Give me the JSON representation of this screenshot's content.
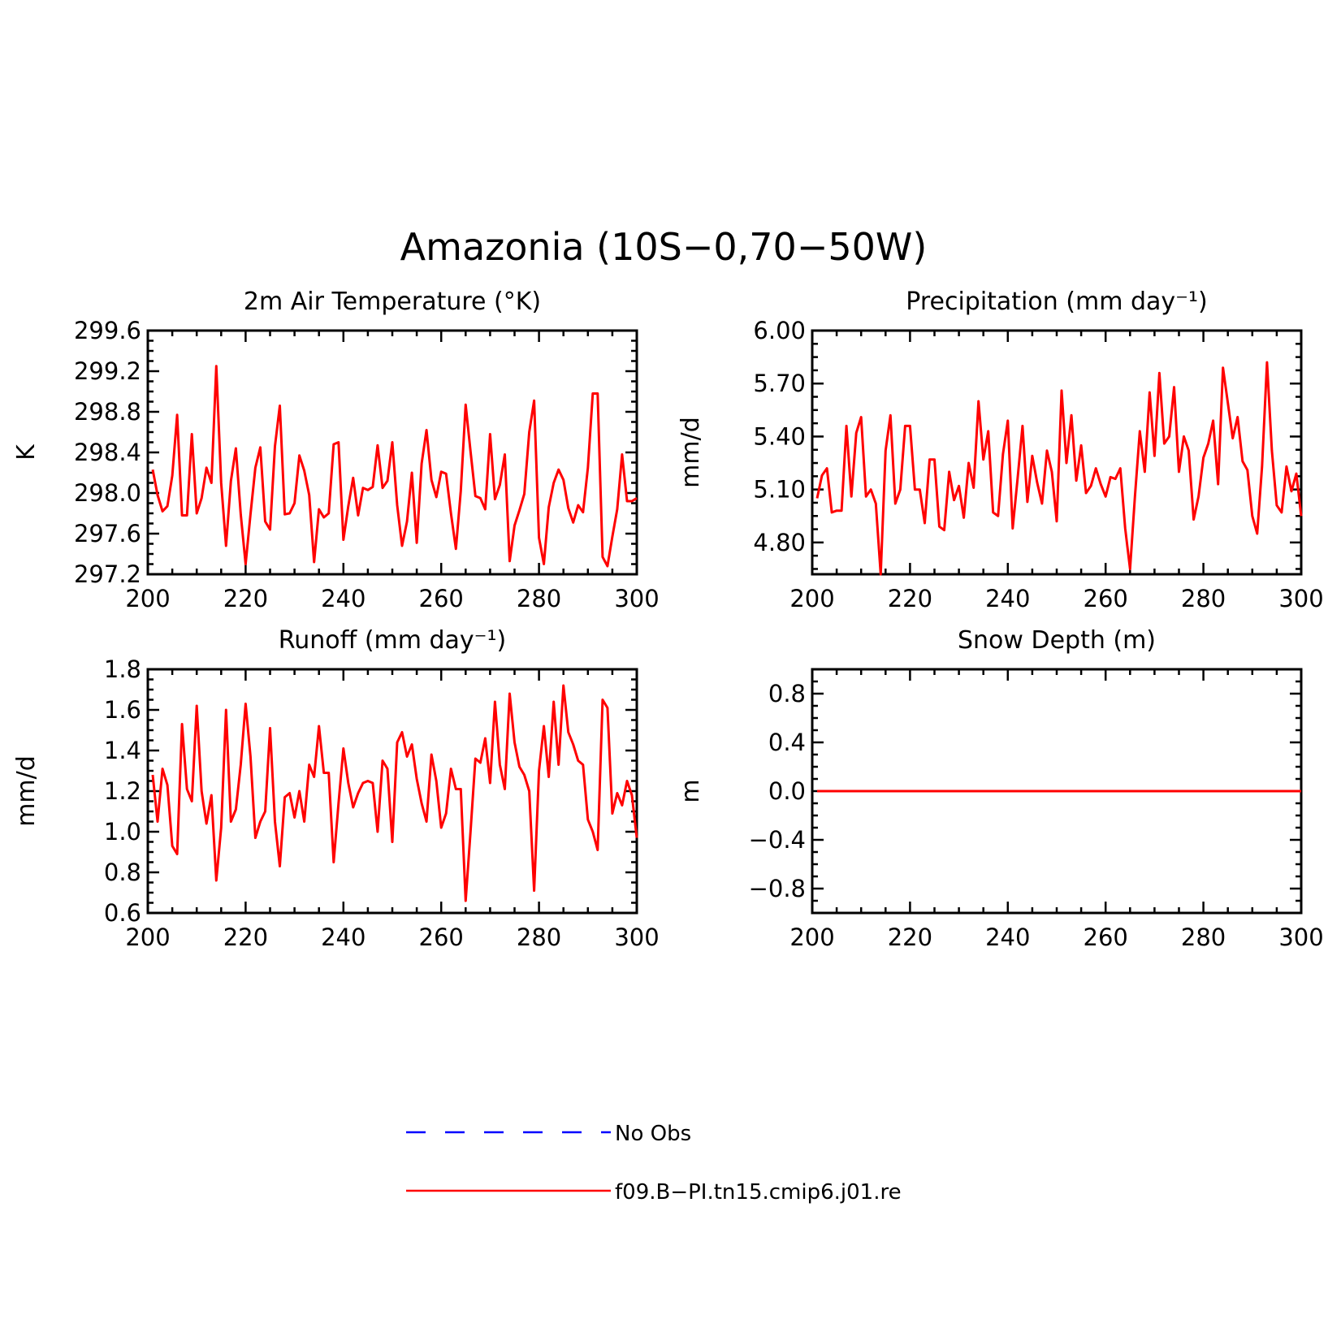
{
  "title": "Amazonia (10S−0,70−50W)",
  "legend": [
    {
      "label": "No Obs",
      "color": "#0000ff",
      "style": "dashed"
    },
    {
      "label": "f09.B−PI.tn15.cmip6.j01.re",
      "color": "#ff0000",
      "style": "solid"
    }
  ],
  "chart_data": [
    {
      "type": "line",
      "title": "2m Air Temperature (°K)",
      "ylabel": "K",
      "xlabel": "",
      "xlim": [
        200,
        300
      ],
      "ylim": [
        297.2,
        299.6
      ],
      "xticks": [
        "200",
        "220",
        "240",
        "260",
        "280",
        "300"
      ],
      "yticks": [
        "297.2",
        "297.6",
        "298.0",
        "298.4",
        "298.8",
        "299.2",
        "299.6"
      ],
      "series": [
        {
          "name": "f09.B−PI.tn15.cmip6.j01.re",
          "color": "#ff0000",
          "x_start": 201,
          "values": [
            298.23,
            297.98,
            297.82,
            297.87,
            298.17,
            298.77,
            297.78,
            297.78,
            298.58,
            297.8,
            297.95,
            298.25,
            298.1,
            299.25,
            298.1,
            297.48,
            298.12,
            298.44,
            297.79,
            297.3,
            297.79,
            298.25,
            298.45,
            297.72,
            297.64,
            298.46,
            298.86,
            297.79,
            297.8,
            297.9,
            298.37,
            298.22,
            297.98,
            297.32,
            297.84,
            297.76,
            297.8,
            298.48,
            298.5,
            297.54,
            297.87,
            298.15,
            297.78,
            298.05,
            298.03,
            298.06,
            298.47,
            298.05,
            298.12,
            298.5,
            297.88,
            297.48,
            297.72,
            298.2,
            297.51,
            298.29,
            298.62,
            298.13,
            297.96,
            298.21,
            298.19,
            297.8,
            297.45,
            298.02,
            298.87,
            298.41,
            297.97,
            297.95,
            297.84,
            298.58,
            297.94,
            298.08,
            298.38,
            297.33,
            297.68,
            297.83,
            297.99,
            298.6,
            298.91,
            297.56,
            297.3,
            297.86,
            298.1,
            298.23,
            298.13,
            297.85,
            297.71,
            297.88,
            297.81,
            298.25,
            298.98,
            298.98,
            297.37,
            297.28,
            297.57,
            297.84,
            298.38,
            297.92,
            297.92,
            297.95
          ]
        }
      ]
    },
    {
      "type": "line",
      "title": "Precipitation (mm day⁻¹)",
      "ylabel": "mm/d",
      "xlabel": "",
      "xlim": [
        200,
        300
      ],
      "ylim": [
        4.62,
        6.0
      ],
      "xticks": [
        "200",
        "220",
        "240",
        "260",
        "280",
        "300"
      ],
      "yticks": [
        "4.80",
        "5.10",
        "5.40",
        "5.70",
        "6.00"
      ],
      "series": [
        {
          "name": "f09.B−PI.tn15.cmip6.j01.re",
          "color": "#ff0000",
          "x_start": 201,
          "values": [
            5.05,
            5.18,
            5.22,
            4.97,
            4.98,
            4.98,
            5.46,
            5.06,
            5.42,
            5.51,
            5.06,
            5.1,
            5.02,
            4.62,
            5.32,
            5.52,
            5.02,
            5.1,
            5.46,
            5.46,
            5.1,
            5.1,
            4.91,
            5.27,
            5.27,
            4.89,
            4.87,
            5.2,
            5.04,
            5.12,
            4.94,
            5.25,
            5.11,
            5.6,
            5.27,
            5.43,
            4.97,
            4.95,
            5.3,
            5.49,
            4.88,
            5.16,
            5.46,
            5.03,
            5.29,
            5.14,
            5.02,
            5.32,
            5.2,
            4.92,
            5.66,
            5.25,
            5.52,
            5.15,
            5.35,
            5.08,
            5.12,
            5.22,
            5.13,
            5.06,
            5.17,
            5.16,
            5.22,
            4.88,
            4.65,
            5.06,
            5.43,
            5.2,
            5.65,
            5.29,
            5.76,
            5.36,
            5.4,
            5.68,
            5.2,
            5.4,
            5.32,
            4.93,
            5.06,
            5.28,
            5.36,
            5.49,
            5.13,
            5.79,
            5.59,
            5.39,
            5.51,
            5.26,
            5.21,
            4.95,
            4.85,
            5.23,
            5.82,
            5.32,
            5.01,
            4.97,
            5.23,
            5.09,
            5.19,
            4.95
          ]
        }
      ]
    },
    {
      "type": "line",
      "title": "Runoff (mm day⁻¹)",
      "ylabel": "mm/d",
      "xlabel": "",
      "xlim": [
        200,
        300
      ],
      "ylim": [
        0.6,
        1.8
      ],
      "xticks": [
        "200",
        "220",
        "240",
        "260",
        "280",
        "300"
      ],
      "yticks": [
        "0.6",
        "0.8",
        "1.0",
        "1.2",
        "1.4",
        "1.6",
        "1.8"
      ],
      "series": [
        {
          "name": "f09.B−PI.tn15.cmip6.j01.re",
          "color": "#ff0000",
          "x_start": 201,
          "values": [
            1.28,
            1.05,
            1.31,
            1.23,
            0.93,
            0.89,
            1.53,
            1.21,
            1.15,
            1.62,
            1.2,
            1.04,
            1.18,
            0.76,
            1.02,
            1.6,
            1.05,
            1.11,
            1.33,
            1.63,
            1.37,
            0.97,
            1.05,
            1.1,
            1.51,
            1.05,
            0.83,
            1.17,
            1.19,
            1.07,
            1.2,
            1.05,
            1.33,
            1.27,
            1.52,
            1.29,
            1.29,
            0.85,
            1.14,
            1.41,
            1.24,
            1.12,
            1.19,
            1.24,
            1.25,
            1.24,
            1.0,
            1.35,
            1.31,
            0.95,
            1.44,
            1.49,
            1.37,
            1.43,
            1.26,
            1.14,
            1.05,
            1.38,
            1.25,
            1.02,
            1.09,
            1.31,
            1.21,
            1.21,
            0.66,
            1.0,
            1.36,
            1.34,
            1.46,
            1.24,
            1.64,
            1.33,
            1.21,
            1.68,
            1.44,
            1.32,
            1.28,
            1.2,
            0.71,
            1.3,
            1.52,
            1.27,
            1.64,
            1.33,
            1.72,
            1.49,
            1.43,
            1.35,
            1.33,
            1.06,
            1.0,
            0.91,
            1.65,
            1.61,
            1.09,
            1.19,
            1.13,
            1.25,
            1.18,
            0.97
          ]
        }
      ]
    },
    {
      "type": "line",
      "title": "Snow Depth (m)",
      "ylabel": "m",
      "xlabel": "",
      "xlim": [
        200,
        300
      ],
      "ylim": [
        -1.0,
        1.0
      ],
      "xticks": [
        "200",
        "220",
        "240",
        "260",
        "280",
        "300"
      ],
      "yticks": [
        "−0.8",
        "−0.4",
        "0.0",
        "0.4",
        "0.8"
      ],
      "series": [
        {
          "name": "f09.B−PI.tn15.cmip6.j01.re",
          "color": "#ff0000",
          "x_start": 201,
          "values": [
            0,
            0,
            0,
            0,
            0,
            0,
            0,
            0,
            0,
            0,
            0,
            0,
            0,
            0,
            0,
            0,
            0,
            0,
            0,
            0,
            0,
            0,
            0,
            0,
            0,
            0,
            0,
            0,
            0,
            0,
            0,
            0,
            0,
            0,
            0,
            0,
            0,
            0,
            0,
            0,
            0,
            0,
            0,
            0,
            0,
            0,
            0,
            0,
            0,
            0,
            0,
            0,
            0,
            0,
            0,
            0,
            0,
            0,
            0,
            0,
            0,
            0,
            0,
            0,
            0,
            0,
            0,
            0,
            0,
            0,
            0,
            0,
            0,
            0,
            0,
            0,
            0,
            0,
            0,
            0,
            0,
            0,
            0,
            0,
            0,
            0,
            0,
            0,
            0,
            0,
            0,
            0,
            0,
            0,
            0,
            0,
            0,
            0,
            0,
            0
          ]
        }
      ]
    }
  ]
}
